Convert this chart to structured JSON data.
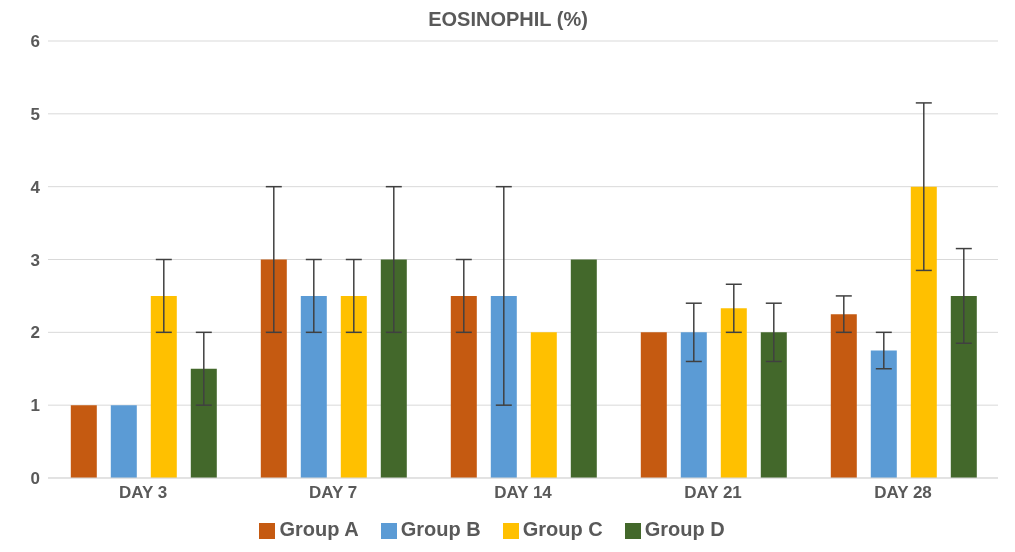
{
  "chart_data": {
    "type": "bar",
    "title": "EOSINOPHIL (%)",
    "categories": [
      "DAY 3",
      "DAY 7",
      "DAY 14",
      "DAY 21",
      "DAY 28"
    ],
    "series": [
      {
        "name": "Group A",
        "color": "#c55a11",
        "values": [
          1,
          3,
          2.5,
          2,
          2.25
        ],
        "errors": [
          0,
          1,
          0.5,
          0,
          0.25
        ]
      },
      {
        "name": "Group B",
        "color": "#5b9bd5",
        "values": [
          1,
          2.5,
          2.5,
          2,
          1.75
        ],
        "errors": [
          0,
          0.5,
          1.5,
          0.4,
          0.25
        ]
      },
      {
        "name": "Group C",
        "color": "#ffc000",
        "values": [
          2.5,
          2.5,
          2,
          2.33,
          4
        ],
        "errors": [
          0.5,
          0.5,
          0,
          0.33,
          1.15
        ]
      },
      {
        "name": "Group D",
        "color": "#43682b",
        "values": [
          1.5,
          3,
          3,
          2,
          2.5
        ],
        "errors": [
          0.5,
          1,
          0,
          0.4,
          0.65
        ]
      }
    ],
    "ylim": [
      0,
      6
    ],
    "yticks": [
      0,
      1,
      2,
      3,
      4,
      5,
      6
    ],
    "grid": "y",
    "legend": "bottom"
  }
}
